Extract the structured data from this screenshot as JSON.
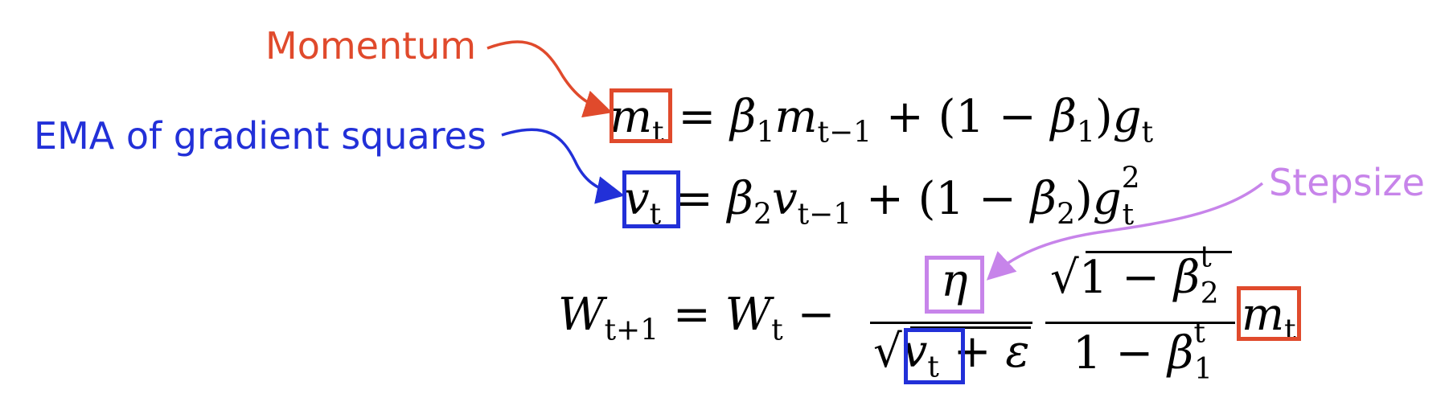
{
  "annotations": {
    "momentum": {
      "text": "Momentum",
      "color": "#e04a2c"
    },
    "ema": {
      "text": "EMA of gradient squares",
      "color": "#2230d8"
    },
    "stepsize": {
      "text": "Stepsize",
      "color": "#c784ea"
    }
  },
  "equations": {
    "eq1": "m_t = β1 m_{t-1} + (1 − β1) g_t",
    "eq2": "v_t = β2 v_{t-1} + (1 − β2) g_t^2",
    "eq3": "W_{t+1} = W_t − η / (√v_t + ε) · √(1 − β2^t) / (1 − β1^t) · m_t"
  },
  "symbols": {
    "m": "m",
    "v": "v",
    "g": "g",
    "W": "W",
    "eta": "η",
    "epsilon": "ε",
    "beta": "β",
    "sqrt": "√",
    "t": "t",
    "tm1": "t−1",
    "tp1": "t+1",
    "one": "1",
    "two": "2",
    "sq": "2",
    "eq": "=",
    "plus": "+",
    "minus": "−",
    "one_minus": "1 −",
    "lparen": "(",
    "rparen": ")"
  }
}
